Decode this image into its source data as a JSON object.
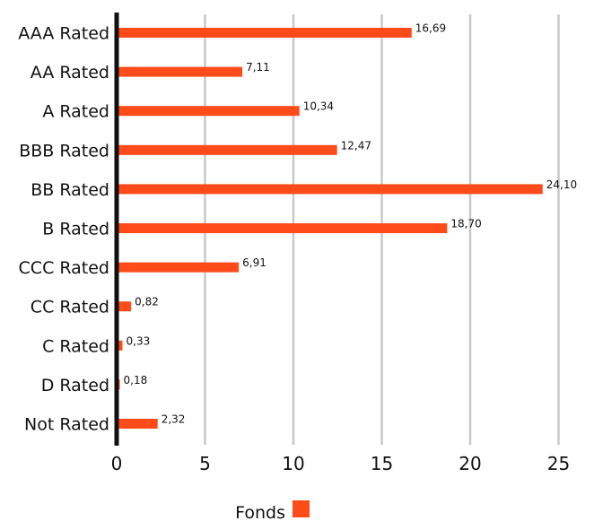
{
  "chart_data": {
    "type": "bar",
    "orientation": "horizontal",
    "categories": [
      "AAA Rated",
      "AA Rated",
      "A Rated",
      "BBB Rated",
      "BB Rated",
      "B Rated",
      "CCC Rated",
      "CC Rated",
      "C Rated",
      "D Rated",
      "Not Rated"
    ],
    "series": [
      {
        "name": "Fonds",
        "values": [
          16.69,
          7.11,
          10.34,
          12.47,
          24.1,
          18.7,
          6.91,
          0.82,
          0.33,
          0.18,
          2.32
        ],
        "labels": [
          "16,69",
          "7,11",
          "10,34",
          "12,47",
          "24,10",
          "18,70",
          "6,91",
          "0,82",
          "0,33",
          "0,18",
          "2,32"
        ],
        "color": "#FF4B1A"
      }
    ],
    "xlim": [
      0,
      25
    ],
    "x_ticks": [
      0,
      5,
      10,
      15,
      20,
      25
    ],
    "x_tick_labels": [
      "0",
      "5",
      "10",
      "15",
      "20",
      "25"
    ],
    "grid": "vertical",
    "legend_position": "bottom",
    "colors": {
      "bar": "#FF4B1A",
      "grid": "#c8c8c8",
      "axis": "#111111"
    }
  }
}
